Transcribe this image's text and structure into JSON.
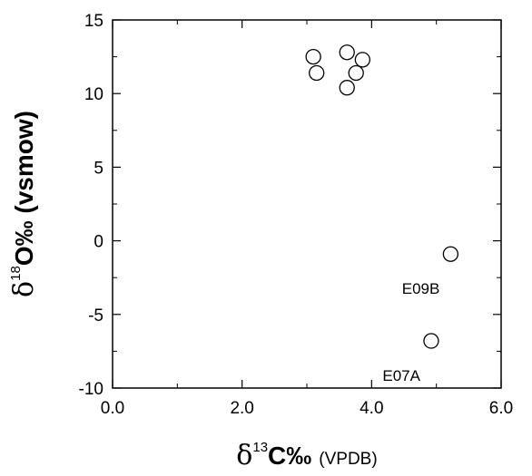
{
  "chart_data": {
    "type": "scatter",
    "title": "",
    "xlabel": {
      "symbol": "δ",
      "superscript": "13",
      "main": "C‰",
      "unit": "(VPDB)"
    },
    "ylabel": {
      "symbol": "δ",
      "superscript": "18",
      "main": "O‰ (vsmow)"
    },
    "xlim": [
      0.0,
      6.0
    ],
    "ylim": [
      -10,
      15
    ],
    "xticks": [
      "0.0",
      "2.0",
      "4.0",
      "6.0"
    ],
    "yticks": [
      "15",
      "10",
      "5",
      "0",
      "-5",
      "-10"
    ],
    "grid": false,
    "marker": "open-circle",
    "points": [
      {
        "x": 3.1,
        "y": 12.5
      },
      {
        "x": 3.15,
        "y": 11.4
      },
      {
        "x": 3.62,
        "y": 12.8
      },
      {
        "x": 3.62,
        "y": 10.4
      },
      {
        "x": 3.76,
        "y": 11.4
      },
      {
        "x": 3.86,
        "y": 12.3
      },
      {
        "x": 5.22,
        "y": -0.9
      },
      {
        "x": 4.92,
        "y": -6.8
      }
    ],
    "annotations": [
      {
        "text": "E09B",
        "x": 5.22,
        "y": -0.9
      },
      {
        "text": "E07A",
        "x": 4.92,
        "y": -6.8
      }
    ]
  }
}
